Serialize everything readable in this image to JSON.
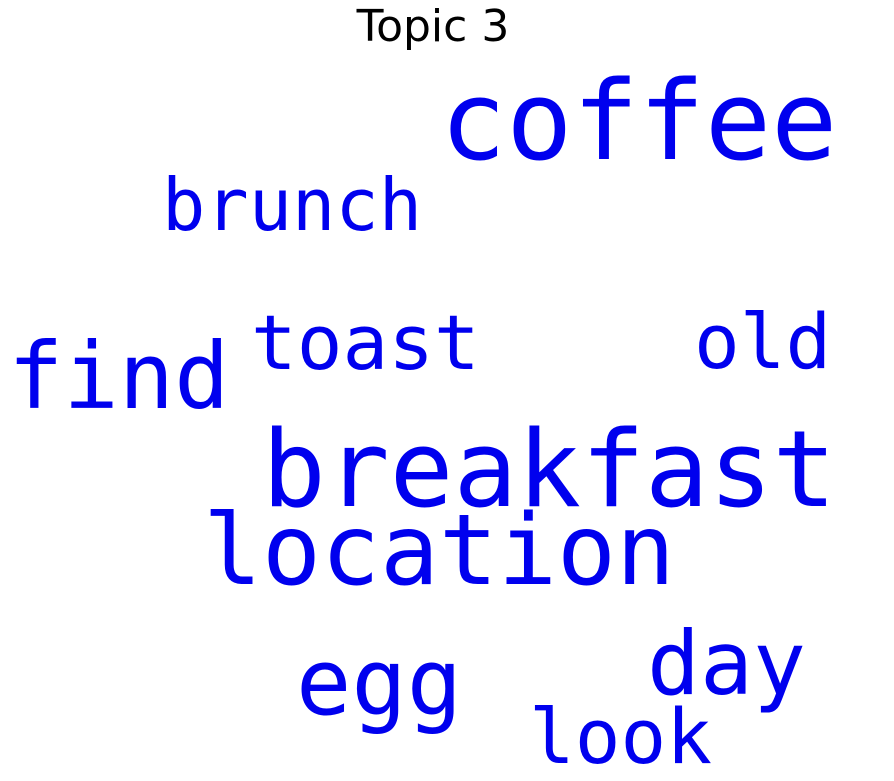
{
  "title": "Topic 3",
  "word_color": "#0000ee",
  "words": [
    {
      "id": "w-coffee",
      "text": "coffee"
    },
    {
      "id": "w-brunch",
      "text": "brunch"
    },
    {
      "id": "w-toast",
      "text": "toast"
    },
    {
      "id": "w-old",
      "text": "old"
    },
    {
      "id": "w-find",
      "text": "find"
    },
    {
      "id": "w-breakfast",
      "text": "breakfast"
    },
    {
      "id": "w-location",
      "text": "location"
    },
    {
      "id": "w-egg",
      "text": "egg"
    },
    {
      "id": "w-day",
      "text": "day"
    },
    {
      "id": "w-look",
      "text": "look"
    }
  ]
}
